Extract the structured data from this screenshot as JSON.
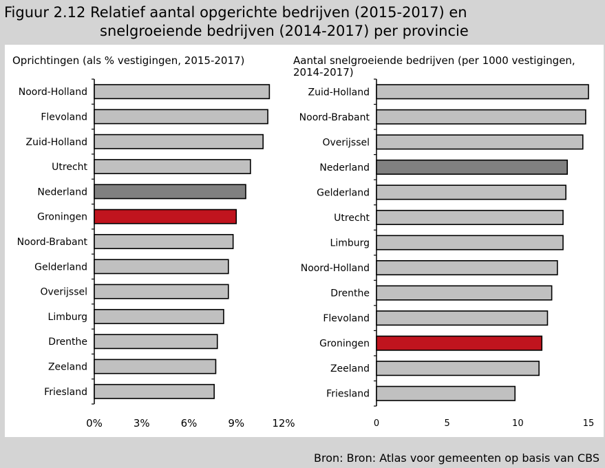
{
  "figure": {
    "title_line1": "Figuur 2.12 Relatief aantal opgerichte bedrijven (2015-2017) en",
    "title_line2": "snelgroeiende bedrijven (2014-2017) per provincie",
    "source": "Bron: Bron: Atlas voor gemeenten op basis van CBS"
  },
  "colors": {
    "default_bar": "#c0c0c0",
    "nederland_bar": "#808080",
    "groningen_bar": "#c0141e",
    "bar_outline": "#000000"
  },
  "chart_data": [
    {
      "type": "bar",
      "orientation": "horizontal",
      "title": "Oprichtingen (als % vestigingen, 2015-2017)",
      "categories": [
        "Noord-Holland",
        "Flevoland",
        "Zuid-Holland",
        "Utrecht",
        "Nederland",
        "Groningen",
        "Noord-Brabant",
        "Gelderland",
        "Overijssel",
        "Limburg",
        "Drenthe",
        "Zeeland",
        "Friesland"
      ],
      "values": [
        11.1,
        11.0,
        10.7,
        9.9,
        9.6,
        9.0,
        8.8,
        8.5,
        8.5,
        8.2,
        7.8,
        7.7,
        7.6
      ],
      "xlim": [
        0,
        12
      ],
      "ticks": [
        0,
        3,
        6,
        9,
        12
      ],
      "tick_labels": [
        "0%",
        "3%",
        "6%",
        "9%",
        "12%"
      ],
      "highlight": {
        "Nederland": "nederland_bar",
        "Groningen": "groningen_bar"
      }
    },
    {
      "type": "bar",
      "orientation": "horizontal",
      "title_line1": "Aantal snelgroeiende bedrijven (per 1000 vestigingen,",
      "title_line2": "2014-2017)",
      "categories": [
        "Zuid-Holland",
        "Noord-Brabant",
        "Overijssel",
        "Nederland",
        "Gelderland",
        "Utrecht",
        "Limburg",
        "Noord-Holland",
        "Drenthe",
        "Flevoland",
        "Groningen",
        "Zeeland",
        "Friesland"
      ],
      "values": [
        15.0,
        14.8,
        14.6,
        13.5,
        13.4,
        13.2,
        13.2,
        12.8,
        12.4,
        12.1,
        11.7,
        11.5,
        9.8
      ],
      "xlim": [
        0,
        15
      ],
      "ticks": [
        0,
        5,
        10,
        15
      ],
      "tick_labels": [
        "0",
        "5",
        "10",
        "15"
      ],
      "highlight": {
        "Nederland": "nederland_bar",
        "Groningen": "groningen_bar"
      }
    }
  ]
}
